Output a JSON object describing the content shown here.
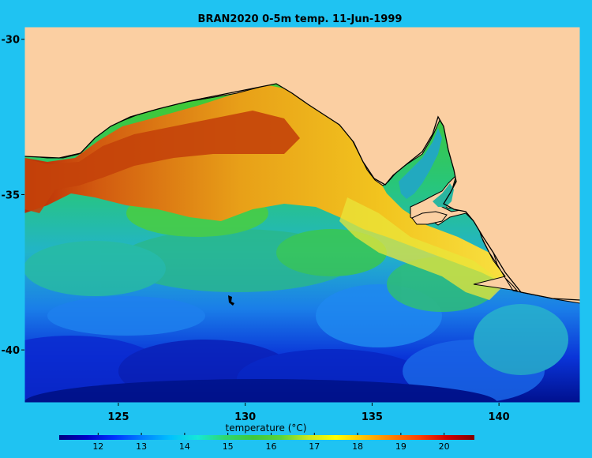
{
  "chart_data": {
    "type": "heatmap",
    "title": "BRAN2020 0-5m temp. 11-Jun-1999",
    "x_ticks": [
      125,
      130,
      135,
      140
    ],
    "y_ticks": [
      -30,
      -35,
      -40
    ],
    "xlim": [
      121.3,
      143.2
    ],
    "ylim": [
      -41.7,
      -29.6
    ],
    "colorbar": {
      "label": "temperature (°C)",
      "ticks": [
        12,
        13,
        14,
        15,
        16,
        17,
        18,
        19,
        20
      ],
      "range": [
        11.1,
        20.7
      ],
      "colors": [
        "#00007f",
        "#0000c8",
        "#0032ff",
        "#0080ff",
        "#00c0ff",
        "#15e8d8",
        "#2ed86e",
        "#3ec83a",
        "#58d43a",
        "#c8e820",
        "#ffff00",
        "#ffc000",
        "#ff8000",
        "#ff4000",
        "#d00000",
        "#800000"
      ]
    },
    "land_color": "#fbcfa2"
  }
}
